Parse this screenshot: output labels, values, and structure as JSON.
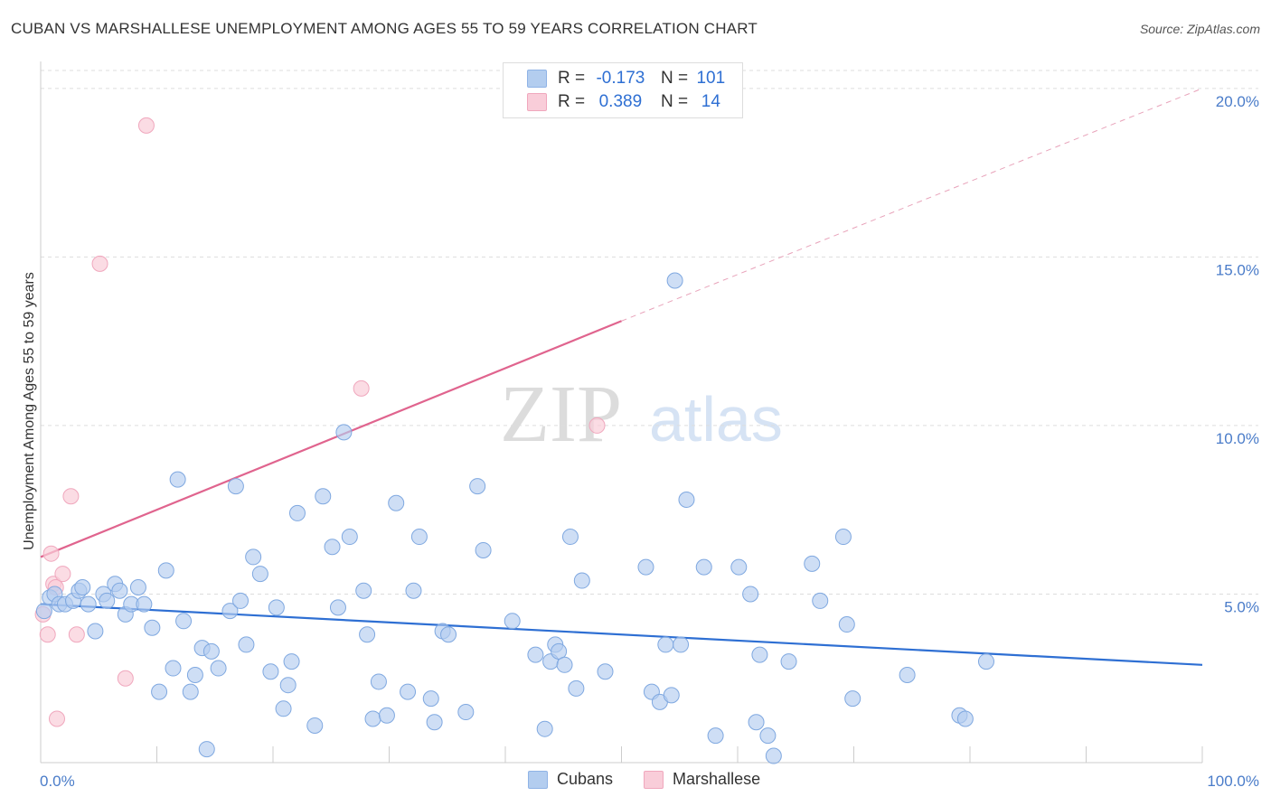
{
  "header": {
    "title": "CUBAN VS MARSHALLESE UNEMPLOYMENT AMONG AGES 55 TO 59 YEARS CORRELATION CHART",
    "source": "Source: ZipAtlas.com"
  },
  "legend": {
    "rows": [
      {
        "r_label": "R =",
        "r_value": "-0.173",
        "n_label": "N =",
        "n_value": "101"
      },
      {
        "r_label": "R =",
        "r_value": "0.389",
        "n_label": "N =",
        "n_value": "14"
      }
    ]
  },
  "bottom_legend": {
    "series1": "Cubans",
    "series2": "Marshallese"
  },
  "watermark": {
    "zip": "ZIP",
    "atlas": "atlas"
  },
  "chart_data": {
    "type": "scatter",
    "title": "CUBAN VS MARSHALLESE UNEMPLOYMENT AMONG AGES 55 TO 59 YEARS CORRELATION CHART",
    "xlabel": "",
    "ylabel": "Unemployment Among Ages 55 to 59 years",
    "xlim": [
      0,
      100
    ],
    "ylim": [
      0,
      20.8
    ],
    "x_tick_labels": [
      "0.0%",
      "100.0%"
    ],
    "y_ticks": [
      5,
      10,
      15,
      20
    ],
    "y_tick_labels": [
      "5.0%",
      "10.0%",
      "15.0%",
      "20.0%"
    ],
    "grid": true,
    "colors": {
      "cubans": "#a9c8ef",
      "cubans_line": "#2e6fd3",
      "marshallese": "#f4b8cb",
      "marshallese_line": "#e0648e"
    },
    "series": [
      {
        "name": "Cubans",
        "trend": {
          "x0": 0,
          "y0": 4.7,
          "x1": 100,
          "y1": 2.9
        },
        "points": [
          [
            0.3,
            4.5
          ],
          [
            0.8,
            4.9
          ],
          [
            1.2,
            5.0
          ],
          [
            1.6,
            4.7
          ],
          [
            2.1,
            4.7
          ],
          [
            2.8,
            4.8
          ],
          [
            3.3,
            5.1
          ],
          [
            3.6,
            5.2
          ],
          [
            4.1,
            4.7
          ],
          [
            4.7,
            3.9
          ],
          [
            5.4,
            5.0
          ],
          [
            5.7,
            4.8
          ],
          [
            6.4,
            5.3
          ],
          [
            6.8,
            5.1
          ],
          [
            7.3,
            4.4
          ],
          [
            7.8,
            4.7
          ],
          [
            8.4,
            5.2
          ],
          [
            8.9,
            4.7
          ],
          [
            9.6,
            4.0
          ],
          [
            10.2,
            2.1
          ],
          [
            10.8,
            5.7
          ],
          [
            11.4,
            2.8
          ],
          [
            11.8,
            8.4
          ],
          [
            12.3,
            4.2
          ],
          [
            12.9,
            2.1
          ],
          [
            13.3,
            2.6
          ],
          [
            13.9,
            3.4
          ],
          [
            14.3,
            0.4
          ],
          [
            14.7,
            3.3
          ],
          [
            15.3,
            2.8
          ],
          [
            16.3,
            4.5
          ],
          [
            16.8,
            8.2
          ],
          [
            17.2,
            4.8
          ],
          [
            17.7,
            3.5
          ],
          [
            18.3,
            6.1
          ],
          [
            18.9,
            5.6
          ],
          [
            19.8,
            2.7
          ],
          [
            20.3,
            4.6
          ],
          [
            20.9,
            1.6
          ],
          [
            21.3,
            2.3
          ],
          [
            21.6,
            3.0
          ],
          [
            22.1,
            7.4
          ],
          [
            23.6,
            1.1
          ],
          [
            24.3,
            7.9
          ],
          [
            25.1,
            6.4
          ],
          [
            25.6,
            4.6
          ],
          [
            26.1,
            9.8
          ],
          [
            26.6,
            6.7
          ],
          [
            27.8,
            5.1
          ],
          [
            28.1,
            3.8
          ],
          [
            28.6,
            1.3
          ],
          [
            29.1,
            2.4
          ],
          [
            29.8,
            1.4
          ],
          [
            30.6,
            7.7
          ],
          [
            31.6,
            2.1
          ],
          [
            32.1,
            5.1
          ],
          [
            32.6,
            6.7
          ],
          [
            33.6,
            1.9
          ],
          [
            33.9,
            1.2
          ],
          [
            34.6,
            3.9
          ],
          [
            35.1,
            3.8
          ],
          [
            36.6,
            1.5
          ],
          [
            37.6,
            8.2
          ],
          [
            38.1,
            6.3
          ],
          [
            40.6,
            4.2
          ],
          [
            42.6,
            3.2
          ],
          [
            43.4,
            1.0
          ],
          [
            43.9,
            3.0
          ],
          [
            44.3,
            3.5
          ],
          [
            44.6,
            3.3
          ],
          [
            45.1,
            2.9
          ],
          [
            45.6,
            6.7
          ],
          [
            46.1,
            2.2
          ],
          [
            46.6,
            5.4
          ],
          [
            48.6,
            2.7
          ],
          [
            52.1,
            5.8
          ],
          [
            52.6,
            2.1
          ],
          [
            53.3,
            1.8
          ],
          [
            54.3,
            2.0
          ],
          [
            55.1,
            3.5
          ],
          [
            55.6,
            7.8
          ],
          [
            57.1,
            5.8
          ],
          [
            58.1,
            0.8
          ],
          [
            60.1,
            5.8
          ],
          [
            61.1,
            5.0
          ],
          [
            61.6,
            1.2
          ],
          [
            61.9,
            3.2
          ],
          [
            62.6,
            0.8
          ],
          [
            63.1,
            0.2
          ],
          [
            64.4,
            3.0
          ],
          [
            66.4,
            5.9
          ],
          [
            67.1,
            4.8
          ],
          [
            69.1,
            6.7
          ],
          [
            69.4,
            4.1
          ],
          [
            69.9,
            1.9
          ],
          [
            74.6,
            2.6
          ],
          [
            79.1,
            1.4
          ],
          [
            79.6,
            1.3
          ],
          [
            81.4,
            3.0
          ],
          [
            54.6,
            14.3
          ],
          [
            53.8,
            3.5
          ]
        ]
      },
      {
        "name": "Marshallese",
        "trend": {
          "x0": 0,
          "y0": 6.1,
          "x1": 50,
          "y1": 13.1,
          "dash_x1": 100,
          "dash_y1": 20.0
        },
        "points": [
          [
            0.2,
            4.4
          ],
          [
            0.6,
            3.8
          ],
          [
            0.9,
            6.2
          ],
          [
            1.1,
            5.3
          ],
          [
            1.3,
            5.2
          ],
          [
            1.4,
            1.3
          ],
          [
            1.9,
            5.6
          ],
          [
            2.6,
            7.9
          ],
          [
            3.1,
            3.8
          ],
          [
            5.1,
            14.8
          ],
          [
            7.3,
            2.5
          ],
          [
            9.1,
            18.9
          ],
          [
            27.6,
            11.1
          ],
          [
            47.9,
            10.0
          ]
        ]
      }
    ]
  }
}
